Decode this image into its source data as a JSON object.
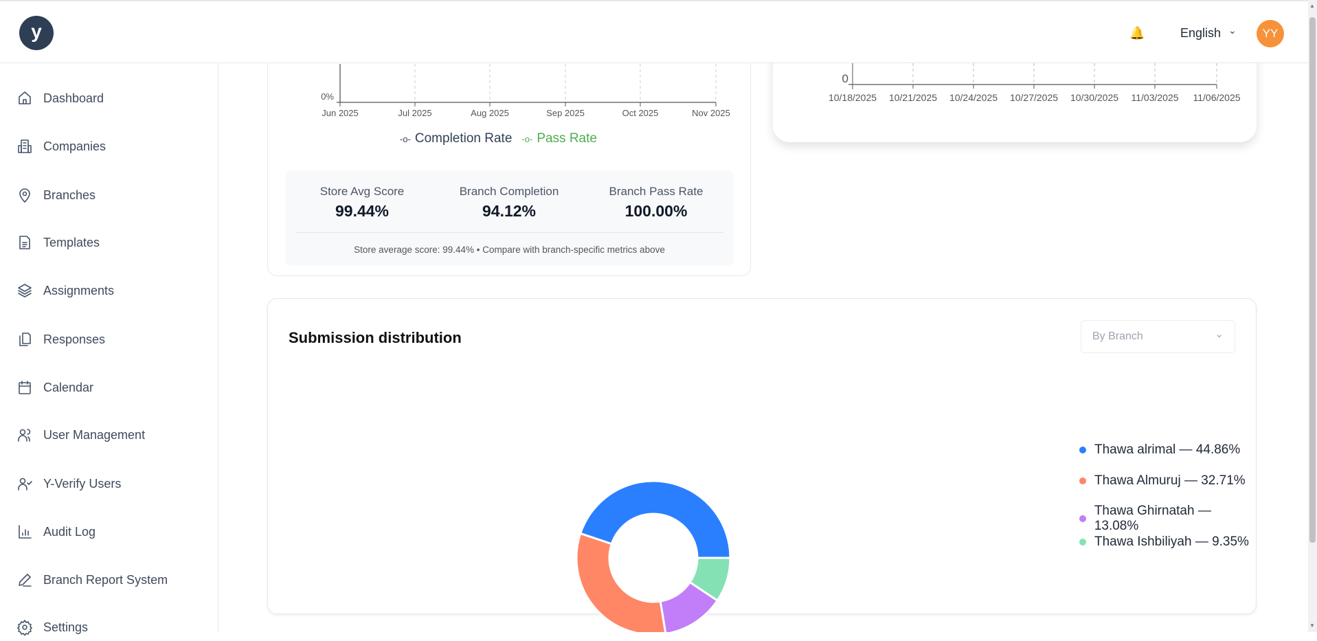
{
  "header": {
    "logo_text": "y",
    "language": "English",
    "avatar_initials": "YY"
  },
  "sidebar": {
    "items": [
      {
        "label": "Dashboard",
        "icon": "home-icon"
      },
      {
        "label": "Companies",
        "icon": "building-icon"
      },
      {
        "label": "Branches",
        "icon": "map-pin-icon"
      },
      {
        "label": "Templates",
        "icon": "document-icon"
      },
      {
        "label": "Assignments",
        "icon": "layers-icon"
      },
      {
        "label": "Responses",
        "icon": "copy-icon"
      },
      {
        "label": "Calendar",
        "icon": "calendar-icon"
      },
      {
        "label": "User Management",
        "icon": "users-icon"
      },
      {
        "label": "Y-Verify Users",
        "icon": "user-check-icon"
      },
      {
        "label": "Audit Log",
        "icon": "bar-chart-icon"
      },
      {
        "label": "Branch Report System",
        "icon": "pencil-icon"
      },
      {
        "label": "Settings",
        "icon": "gear-icon"
      }
    ]
  },
  "trend_card": {
    "y_tick": "0%",
    "x_ticks": [
      "Jun 2025",
      "Jul 2025",
      "Aug 2025",
      "Sep 2025",
      "Oct 2025",
      "Nov 2025"
    ],
    "legend": [
      {
        "label": "Completion Rate",
        "color": "#334155"
      },
      {
        "label": "Pass Rate",
        "color": "#4caf50"
      }
    ],
    "stats": [
      {
        "label": "Store Avg Score",
        "value": "99.44%"
      },
      {
        "label": "Branch Completion",
        "value": "94.12%"
      },
      {
        "label": "Branch Pass Rate",
        "value": "100.00%"
      }
    ],
    "note": "Store average score: 99.44% • Compare with branch-specific metrics above"
  },
  "timeline_card": {
    "y_tick": "0",
    "x_ticks": [
      "10/18/2025",
      "10/21/2025",
      "10/24/2025",
      "10/27/2025",
      "10/30/2025",
      "11/03/2025",
      "11/06/2025"
    ]
  },
  "distribution": {
    "title": "Submission distribution",
    "dropdown": "By Branch",
    "legend_labels": [
      "Thawa alrimal — 44.86%",
      "Thawa Almuruj — 32.71%",
      "Thawa Ghirnatah — 13.08%",
      "Thawa Ishbiliyah — 9.35%"
    ]
  },
  "chart_data": {
    "type": "pie",
    "title": "Submission distribution",
    "categories": [
      "Thawa alrimal",
      "Thawa Almuruj",
      "Thawa Ghirnatah",
      "Thawa Ishbiliyah"
    ],
    "values": [
      44.86,
      32.71,
      13.08,
      9.35
    ],
    "colors": [
      "#2a7fff",
      "#ff8766",
      "#c17ef8",
      "#84e1b3"
    ],
    "legend": "right"
  }
}
